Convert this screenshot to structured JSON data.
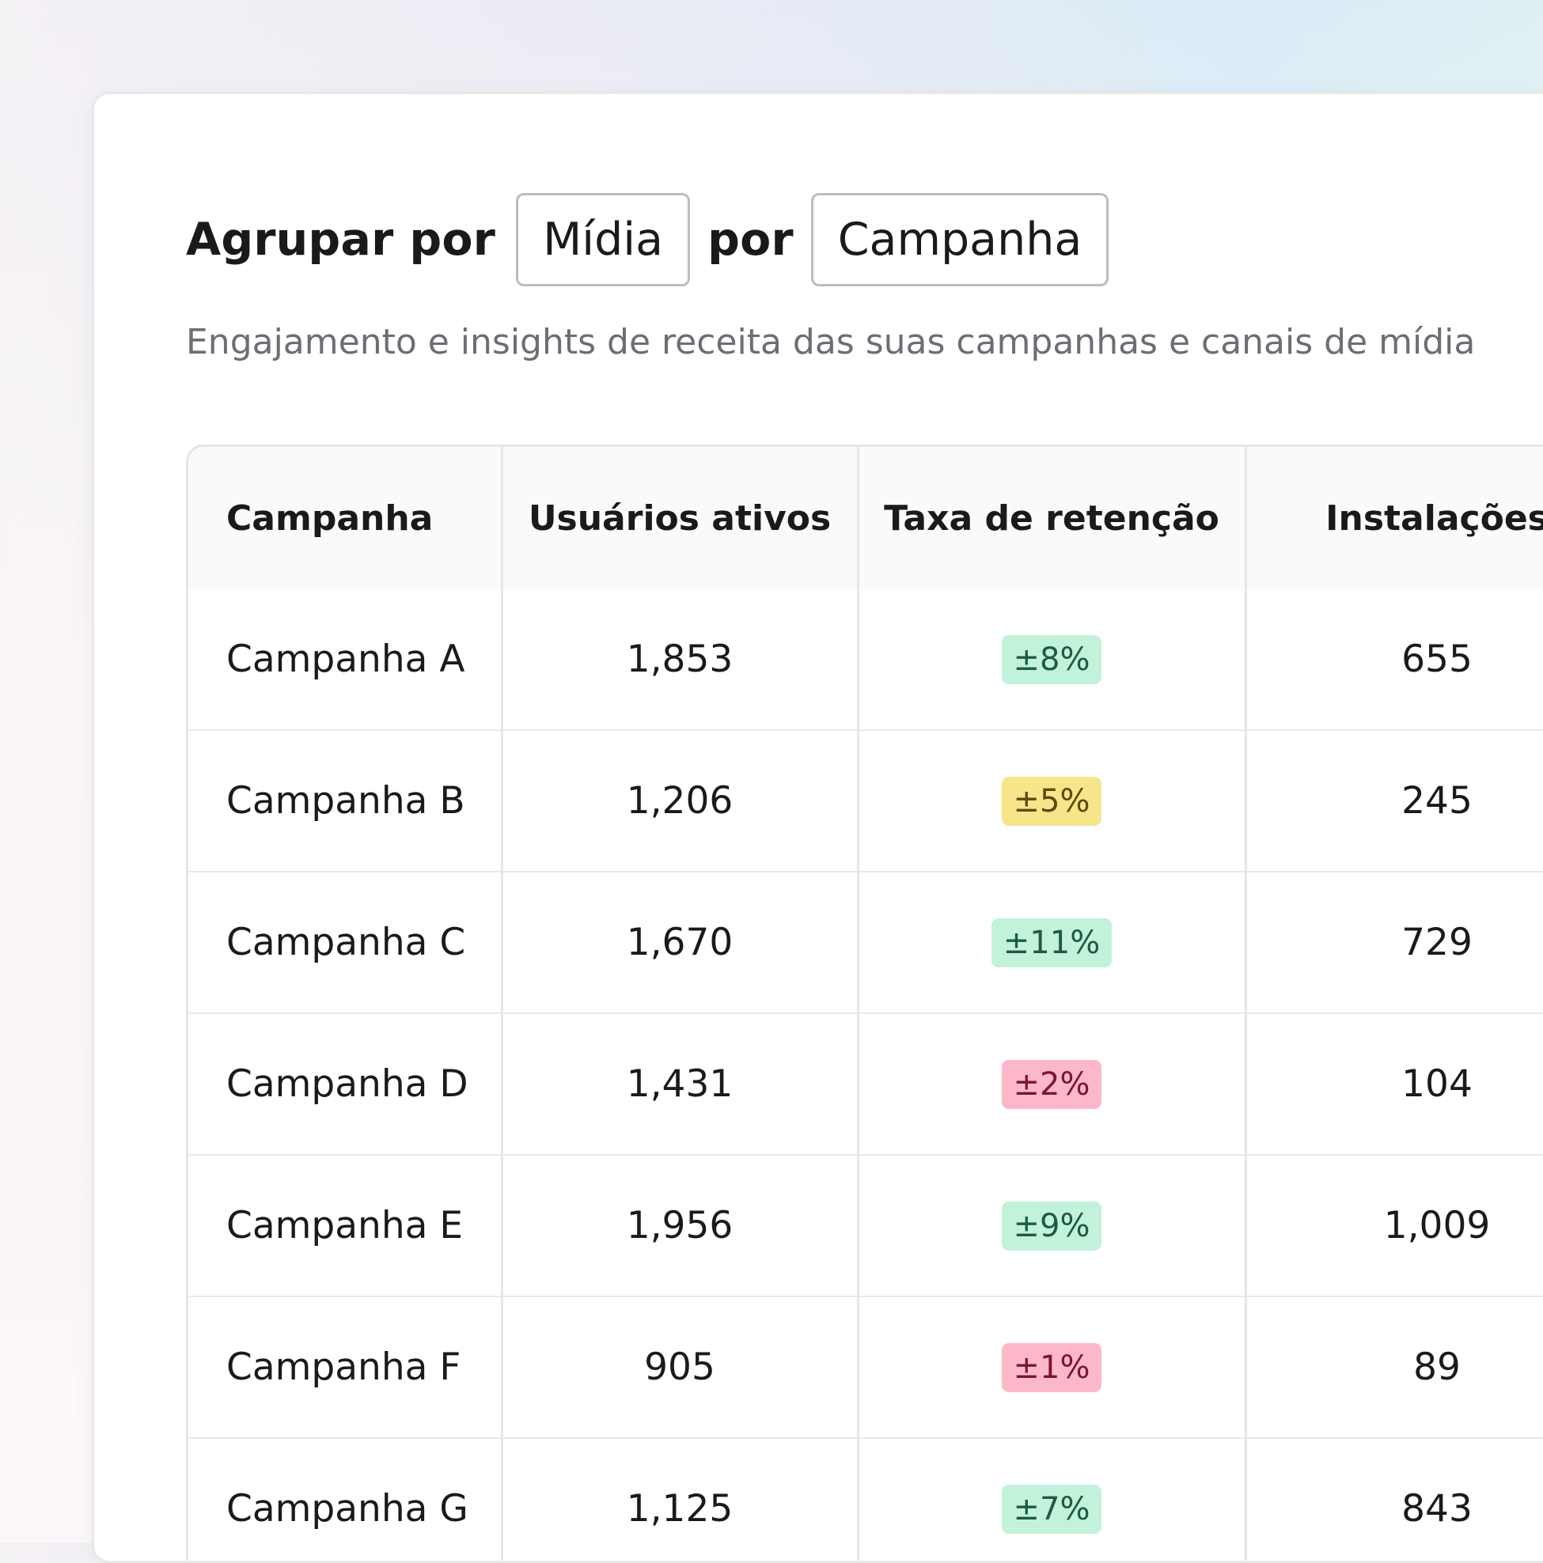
{
  "header": {
    "group_label": "Agrupar por",
    "group_select_1": "Mídia",
    "connector": "por",
    "group_select_2": "Campanha",
    "subtitle": "Engajamento e insights de receita das suas campanhas e canais de mídia"
  },
  "table": {
    "columns": [
      "Campanha",
      "Usuários ativos",
      "Taxa de retenção",
      "Instalações"
    ],
    "rows": [
      {
        "campaign": "Campanha A",
        "active_users": "1,853",
        "retention": "±8%",
        "retention_status": "positive",
        "installs": "655"
      },
      {
        "campaign": "Campanha B",
        "active_users": "1,206",
        "retention": "±5%",
        "retention_status": "neutral",
        "installs": "245"
      },
      {
        "campaign": "Campanha C",
        "active_users": "1,670",
        "retention": "±11%",
        "retention_status": "positive",
        "installs": "729"
      },
      {
        "campaign": "Campanha D",
        "active_users": "1,431",
        "retention": "±2%",
        "retention_status": "negative",
        "installs": "104"
      },
      {
        "campaign": "Campanha E",
        "active_users": "1,956",
        "retention": "±9%",
        "retention_status": "positive",
        "installs": "1,009"
      },
      {
        "campaign": "Campanha F",
        "active_users": "905",
        "retention": "±1%",
        "retention_status": "negative",
        "installs": "89"
      },
      {
        "campaign": "Campanha G",
        "active_users": "1,125",
        "retention": "±7%",
        "retention_status": "positive",
        "installs": "843"
      }
    ]
  },
  "colors": {
    "positive_bg": "#c2f2d9",
    "positive_fg": "#1d5a45",
    "neutral_bg": "#f7e58a",
    "neutral_fg": "#5e4a0c",
    "negative_bg": "#fcb8c8",
    "negative_fg": "#7a1530"
  }
}
